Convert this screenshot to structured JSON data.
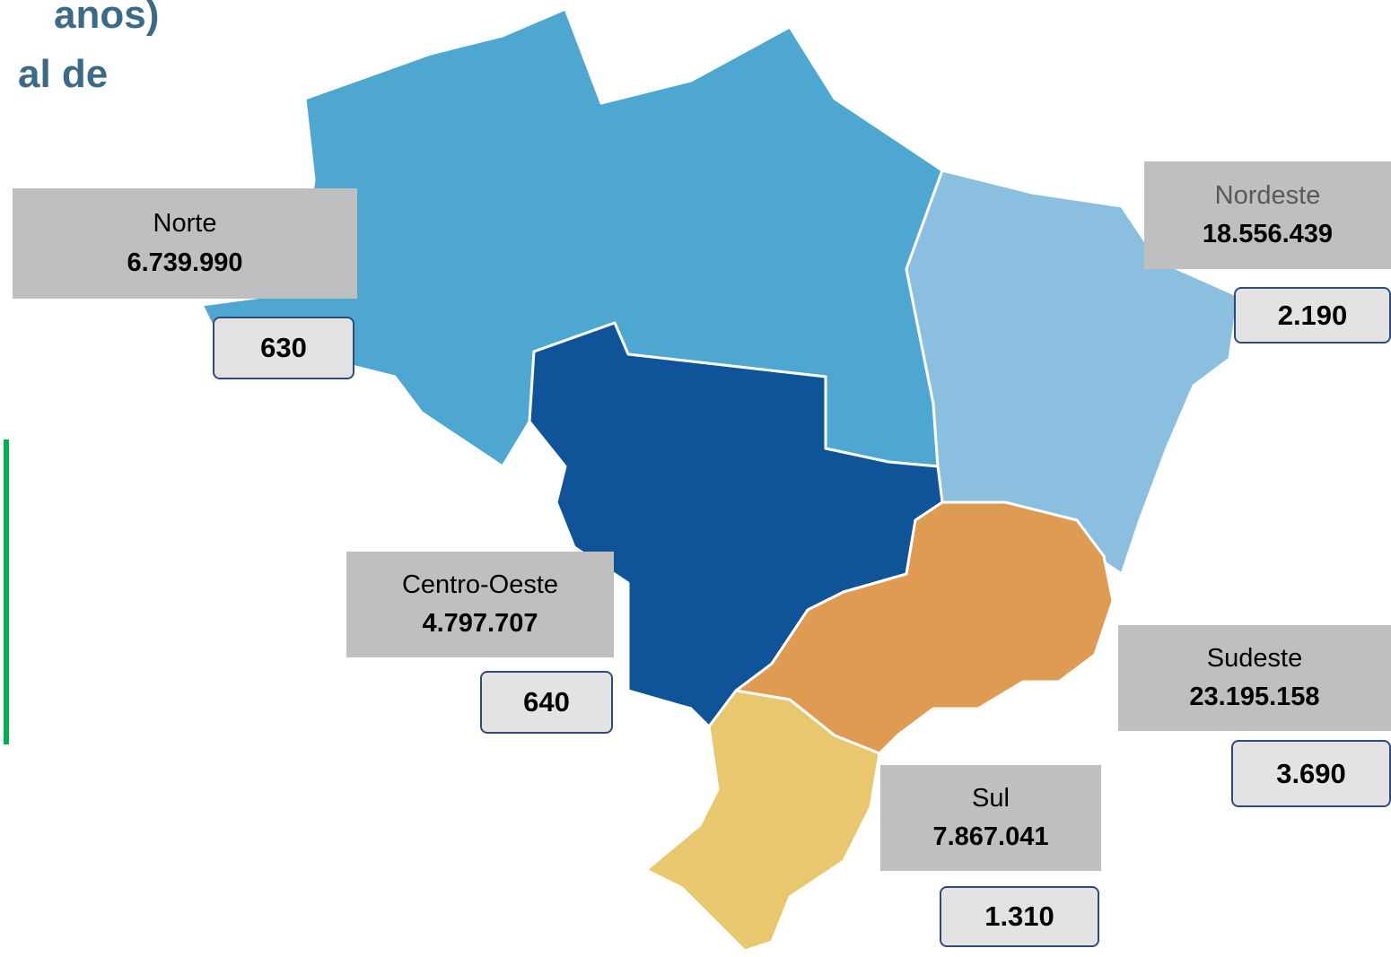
{
  "header": {
    "title_lines": [
      "anos)",
      "al de"
    ]
  },
  "regions": [
    {
      "name": "Norte",
      "population": "6.739.990",
      "count": "630"
    },
    {
      "name": "Nordeste",
      "population": "18.556.439",
      "count": "2.190"
    },
    {
      "name": "Centro-Oeste",
      "population": "4.797.707",
      "count": "640"
    },
    {
      "name": "Sudeste",
      "population": "23.195.158",
      "count": "3.690"
    },
    {
      "name": "Sul",
      "population": "7.867.041",
      "count": "1.310"
    }
  ]
}
